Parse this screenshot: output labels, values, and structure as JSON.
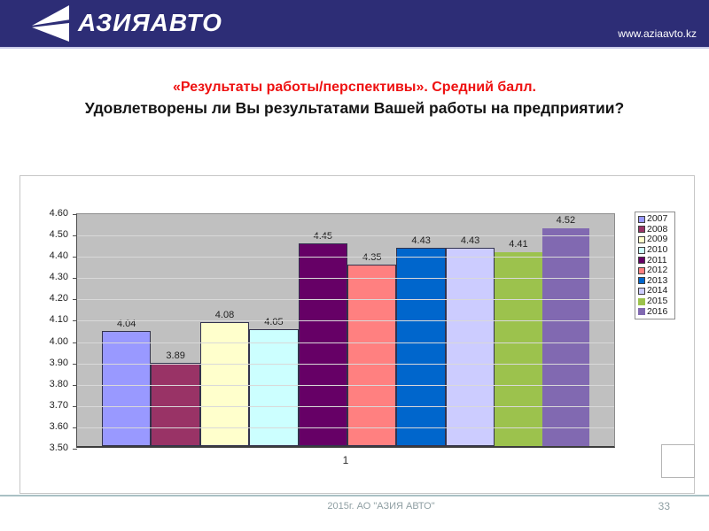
{
  "header": {
    "logo_text": "АЗИЯАВТО",
    "website": "www.aziaavto.kz",
    "bg_color": "#2d2d76"
  },
  "title": {
    "line1": "«Результаты работы/перспективы». Средний балл.",
    "line2": "Удовлетворены ли Вы результатами Вашей работы на предприятии?",
    "line1_color": "#ee1111"
  },
  "chart_data": {
    "type": "bar",
    "title": "",
    "categories": [
      "1"
    ],
    "series": [
      {
        "name": "2007",
        "value": 4.04,
        "color": "#9999ff",
        "outlined": true
      },
      {
        "name": "2008",
        "value": 3.89,
        "color": "#993366",
        "outlined": true
      },
      {
        "name": "2009",
        "value": 4.08,
        "color": "#ffffcc",
        "outlined": true
      },
      {
        "name": "2010",
        "value": 4.05,
        "color": "#ccffff",
        "outlined": true
      },
      {
        "name": "2011",
        "value": 4.45,
        "color": "#660066",
        "outlined": true
      },
      {
        "name": "2012",
        "value": 4.35,
        "color": "#ff8080",
        "outlined": true
      },
      {
        "name": "2013",
        "value": 4.43,
        "color": "#0066cc",
        "outlined": true
      },
      {
        "name": "2014",
        "value": 4.43,
        "color": "#ccccff",
        "outlined": true
      },
      {
        "name": "2015",
        "value": 4.41,
        "color": "#9cc24d",
        "outlined": false
      },
      {
        "name": "2016",
        "value": 4.52,
        "color": "#8169b1",
        "outlined": false
      }
    ],
    "ylim": [
      3.5,
      4.6
    ],
    "ytick_step": 0.1,
    "grid": true,
    "legend_position": "right",
    "plot_bg": "#c0c0c0",
    "grid_color": "#d9d9d9",
    "bar_outline_color": "#33334d"
  },
  "footer": {
    "text": "2015г. АО \"АЗИЯ АВТО\"",
    "page_number": "33"
  }
}
